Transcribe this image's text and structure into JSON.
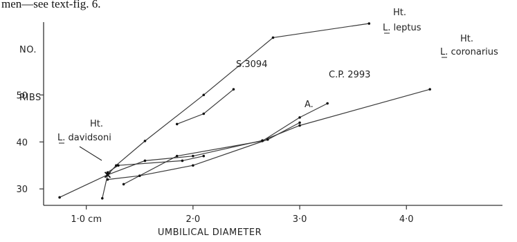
{
  "caption": "men—see text-fig. 6.",
  "chart_data": {
    "type": "line",
    "xlabel": "UMBILICAL DIAMETER",
    "ylabel_lines": [
      "NO.",
      "RIBS"
    ],
    "xlim": [
      0.6,
      4.9
    ],
    "ylim": [
      26.5,
      65.5
    ],
    "x_ticks": [
      {
        "value": 1.0,
        "label": "1·0 cm"
      },
      {
        "value": 2.0,
        "label": "2·0"
      },
      {
        "value": 3.0,
        "label": "3·0"
      },
      {
        "value": 4.0,
        "label": "4·0"
      }
    ],
    "y_ticks": [
      {
        "value": 30,
        "label": "30"
      },
      {
        "value": 40,
        "label": "40"
      },
      {
        "value": 50,
        "label": "50"
      }
    ],
    "series": [
      {
        "name": "Ht. L. leptus",
        "points": [
          [
            1.15,
            28
          ],
          [
            1.2,
            33
          ],
          [
            1.28,
            35
          ],
          [
            1.55,
            40.2
          ],
          [
            2.1,
            50
          ],
          [
            2.75,
            62.2
          ],
          [
            3.65,
            65.2
          ]
        ]
      },
      {
        "name": "S.3094",
        "points": [
          [
            1.85,
            43.8
          ],
          [
            2.1,
            46
          ],
          [
            2.38,
            51.2
          ]
        ]
      },
      {
        "name": "Ht. L. coronarius",
        "points": [
          [
            0.75,
            28.2
          ],
          [
            1.2,
            33
          ],
          [
            1.55,
            36
          ],
          [
            2.0,
            37
          ],
          [
            2.65,
            40.3
          ],
          [
            3.0,
            43.5
          ],
          [
            4.22,
            51.2
          ]
        ]
      },
      {
        "name": "C.P. 2993",
        "points": [
          [
            1.35,
            31
          ],
          [
            1.85,
            37
          ],
          [
            2.65,
            40.2
          ],
          [
            3.0,
            45.2
          ],
          [
            3.26,
            48.2
          ]
        ]
      },
      {
        "name": "A.",
        "points": [
          [
            1.2,
            32
          ],
          [
            1.5,
            32.8
          ],
          [
            2.0,
            35
          ],
          [
            2.7,
            40.5
          ],
          [
            3.0,
            44.1
          ]
        ]
      },
      {
        "name": "L. davidsoni link",
        "points": [
          [
            1.2,
            33.5
          ],
          [
            1.3,
            35
          ],
          [
            1.9,
            36
          ],
          [
            2.1,
            37
          ]
        ]
      }
    ],
    "annotations": [
      {
        "lines": [
          "Ht.",
          "L. leptus"
        ],
        "series": "Ht. L. leptus"
      },
      {
        "lines": [
          "S.3094"
        ],
        "series": "S.3094"
      },
      {
        "lines": [
          "Ht.",
          "L. coronarius"
        ],
        "series": "Ht. L. coronarius"
      },
      {
        "lines": [
          "C.P. 2993"
        ],
        "series": "C.P. 2993"
      },
      {
        "lines": [
          "A."
        ],
        "series": "A."
      },
      {
        "lines": [
          "Ht.",
          "L. davidsoni"
        ],
        "series": "davidsoni",
        "marker": "x",
        "point": [
          1.2,
          33
        ]
      }
    ],
    "grid": false
  }
}
